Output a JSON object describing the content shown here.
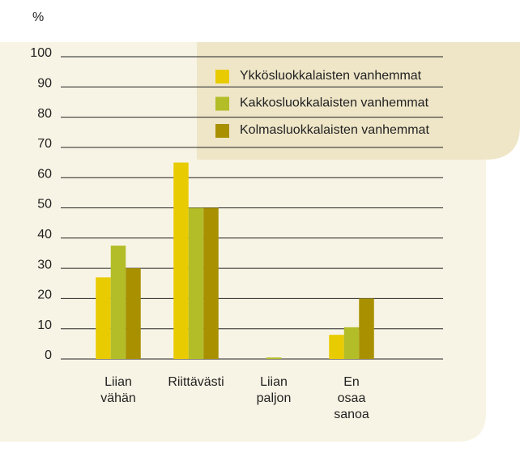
{
  "chart_data": {
    "type": "bar",
    "y_label": "%",
    "categories": [
      "Liian\nvähän",
      "Riittävästi",
      "Liian\npaljon",
      "En\nosaa\nsanoa"
    ],
    "series": [
      {
        "name": "Ykkösluokkalaisten vanhemmat",
        "color": "#e8cb00",
        "values": [
          27,
          65,
          0,
          8
        ]
      },
      {
        "name": "Kakkosluokkalaisten vanhemmat",
        "color": "#b2bd28",
        "values": [
          37.5,
          50,
          0.5,
          10.5
        ]
      },
      {
        "name": "Kolmasluokkalaisten vanhemmat",
        "color": "#a89000",
        "values": [
          30,
          50,
          0,
          20
        ]
      }
    ],
    "ylim": [
      0,
      100
    ],
    "yticks": [
      0,
      10,
      20,
      30,
      40,
      50,
      60,
      70,
      80,
      90,
      100
    ],
    "grid": true,
    "legend": "upper right"
  }
}
